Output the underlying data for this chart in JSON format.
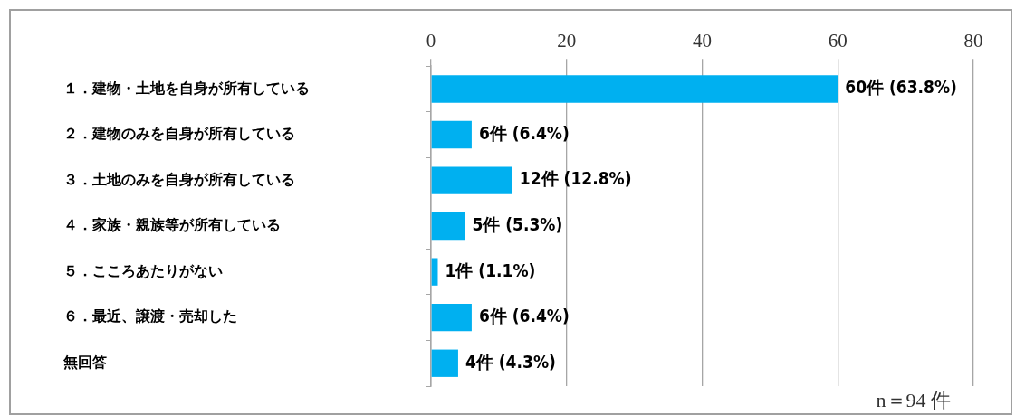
{
  "chart_data": {
    "type": "bar",
    "orientation": "horizontal",
    "categories": [
      "１．建物・土地を自身が所有している",
      "２．建物のみを自身が所有している",
      "３．土地のみを自身が所有している",
      "４．家族・親族等が所有している",
      "５．こころあたりがない",
      "６．最近、譲渡・売却した",
      "無回答"
    ],
    "values": [
      60,
      6,
      12,
      5,
      1,
      6,
      4
    ],
    "value_labels": [
      "60件 (63.8%)",
      "6件 (6.4%)",
      "12件 (12.8%)",
      "5件 (5.3%)",
      "1件 (1.1%)",
      "6件 (6.4%)",
      "4件 (4.3%)"
    ],
    "color": "#00b0f0",
    "xlim": [
      0,
      80
    ],
    "xticks": [
      0,
      20,
      40,
      60,
      80
    ],
    "grid": "x",
    "legend": false,
    "annotations": [
      "n＝94 件"
    ]
  }
}
